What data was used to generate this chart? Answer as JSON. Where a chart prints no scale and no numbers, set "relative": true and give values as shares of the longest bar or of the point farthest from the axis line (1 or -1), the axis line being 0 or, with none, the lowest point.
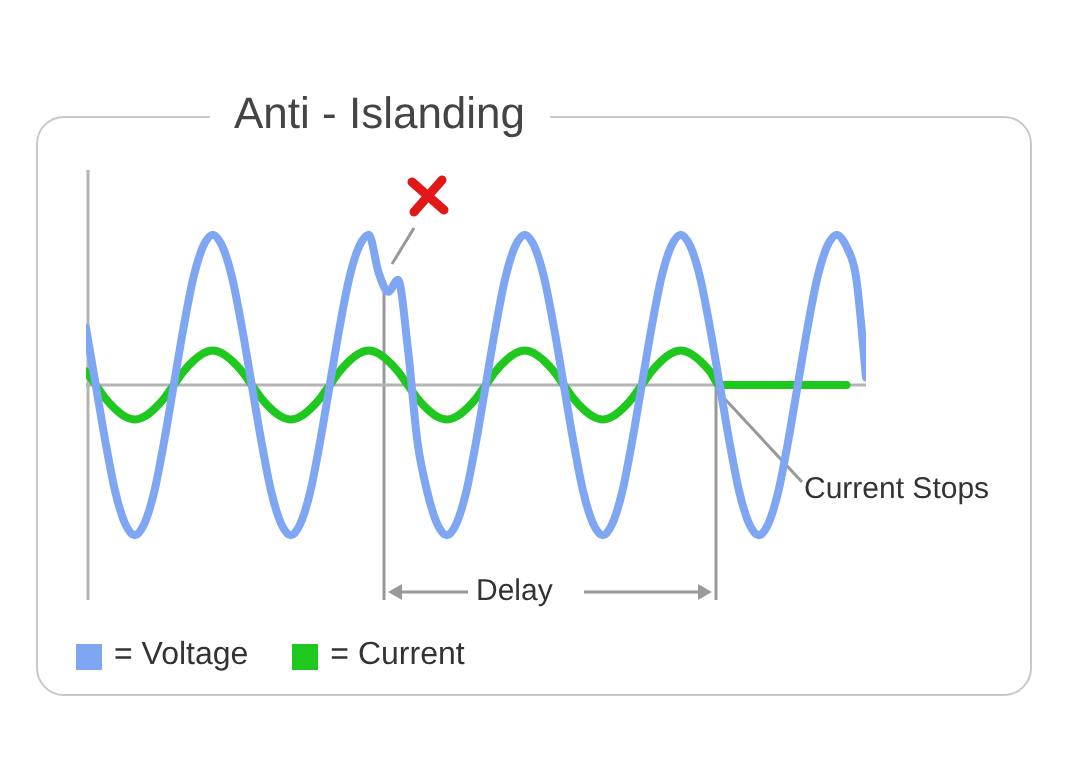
{
  "chart_data": {
    "type": "line",
    "title": "Anti - Islanding",
    "relative": true,
    "legend": "bottom left",
    "marker": "none",
    "categories": [
      null,
      null,
      null,
      null,
      null,
      null,
      null,
      null,
      null,
      null,
      null,
      null,
      null,
      null,
      null,
      null,
      null,
      null,
      null,
      null,
      null,
      null,
      null,
      null,
      null,
      null,
      null,
      null,
      null,
      null,
      null,
      null,
      null,
      null,
      null,
      null,
      null,
      null,
      null,
      null,
      null,
      null,
      null,
      null,
      null,
      null,
      null,
      null,
      null,
      null,
      null,
      null,
      null,
      null,
      null,
      null,
      null,
      null,
      null,
      null,
      null,
      null,
      null,
      null,
      null,
      null,
      null,
      null,
      null,
      null,
      null,
      null,
      null,
      null,
      null,
      null,
      null,
      null,
      null,
      null,
      null
    ],
    "series": [
      {
        "name": "= Voltage",
        "color": "#7fa6f2",
        "values": [
          0.38,
          0,
          -0.38,
          -0.71,
          -0.92,
          -1,
          -0.92,
          -0.71,
          -0.38,
          0,
          0.38,
          0.71,
          0.92,
          1,
          0.92,
          0.71,
          0.38,
          0,
          -0.38,
          -0.71,
          -0.92,
          -1,
          -0.92,
          -0.71,
          -0.38,
          0,
          0.38,
          0.71,
          0.92,
          1,
          0.75,
          0.62,
          0.7,
          0.25,
          -0.38,
          -0.71,
          -0.92,
          -1,
          -0.92,
          -0.71,
          -0.38,
          0,
          0.38,
          0.71,
          0.92,
          1,
          0.92,
          0.71,
          0.38,
          0,
          -0.38,
          -0.71,
          -0.92,
          -1,
          -0.92,
          -0.71,
          -0.38,
          0,
          0.38,
          0.71,
          0.92,
          1,
          0.92,
          0.71,
          0.38,
          0,
          -0.38,
          -0.71,
          -0.92,
          -1,
          -0.92,
          -0.71,
          -0.38,
          0,
          0.38,
          0.71,
          0.92,
          1,
          0.92,
          0.71,
          0.05
        ]
      },
      {
        "name": "= Current",
        "color": "#1ec81e",
        "values": [
          0.09,
          0,
          -0.09,
          -0.16,
          -0.21,
          -0.23,
          -0.21,
          -0.16,
          -0.09,
          0,
          0.09,
          0.16,
          0.21,
          0.23,
          0.21,
          0.16,
          0.09,
          0,
          -0.09,
          -0.16,
          -0.21,
          -0.23,
          -0.21,
          -0.16,
          -0.09,
          0,
          0.09,
          0.16,
          0.21,
          0.23,
          0.21,
          0.16,
          0.09,
          0,
          -0.09,
          -0.16,
          -0.21,
          -0.23,
          -0.21,
          -0.16,
          -0.09,
          0,
          0.09,
          0.16,
          0.21,
          0.23,
          0.21,
          0.16,
          0.09,
          0,
          -0.09,
          -0.16,
          -0.21,
          -0.23,
          -0.21,
          -0.16,
          -0.09,
          0,
          0.09,
          0.16,
          0.21,
          0.23,
          0.21,
          0.16,
          0.09,
          0,
          0,
          0,
          0,
          0,
          0,
          0,
          0,
          0,
          0,
          0,
          0,
          0,
          0,
          null,
          null
        ]
      }
    ],
    "annotations": [
      "Delay",
      "Current Stops"
    ]
  }
}
